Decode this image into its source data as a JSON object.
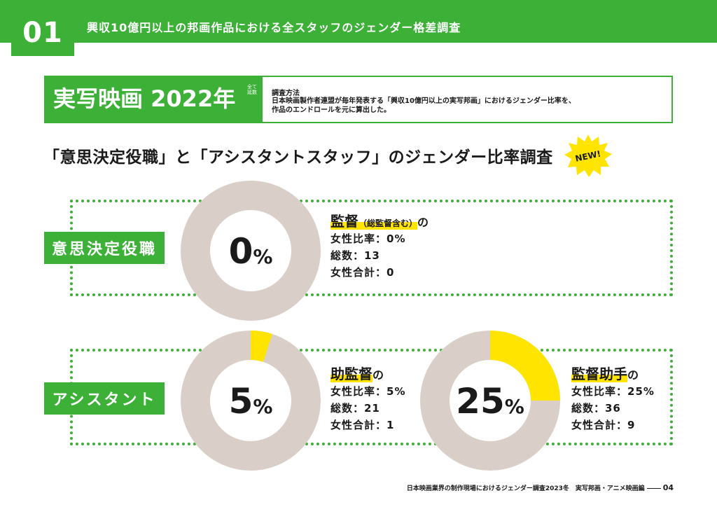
{
  "section": {
    "number": "01",
    "title": "興収10億円以上の邦画作品における全スタッフのジェンダー格差調査"
  },
  "header": {
    "title": "実写映画 2022年",
    "vertical_note": "全て延数",
    "method_heading": "調査方法",
    "method_line1": "日本映画製作者連盟が毎年発表する「興収10億円以上の実写邦画」におけるジェンダー比率を、",
    "method_line2": "作品のエンドロールを元に算出した。"
  },
  "subtitle": "「意思決定役職」と「アシスタントスタッフ」のジェンダー比率調査",
  "new_badge": "NEW!",
  "colors": {
    "accent": "#3db038",
    "highlight": "#ffe400",
    "ring": "#d9cfc8"
  },
  "groups": [
    {
      "label": "意思決定役職",
      "roles": [
        {
          "title": "監督",
          "title_sub": "（総監督含む）",
          "suffix": "の",
          "percent_value": 0,
          "percent_text": "0",
          "percent_unit": "%",
          "female_ratio": "女性比率：0%",
          "total": "総数：13",
          "female_total": "女性合計：0"
        }
      ]
    },
    {
      "label": "アシスタント",
      "roles": [
        {
          "title": "助監督",
          "title_sub": "",
          "suffix": "の",
          "percent_value": 5,
          "percent_text": "5",
          "percent_unit": "%",
          "female_ratio": "女性比率：5%",
          "total": "総数：21",
          "female_total": "女性合計：1"
        },
        {
          "title": "監督助手",
          "title_sub": "",
          "suffix": "の",
          "percent_value": 25,
          "percent_text": "25",
          "percent_unit": "%",
          "female_ratio": "女性比率：25%",
          "total": "総数：36",
          "female_total": "女性合計：9"
        }
      ]
    }
  ],
  "footer": {
    "text": "日本映画業界の制作現場におけるジェンダー調査2023冬　実写邦画・アニメ映画編",
    "page": "04"
  }
}
